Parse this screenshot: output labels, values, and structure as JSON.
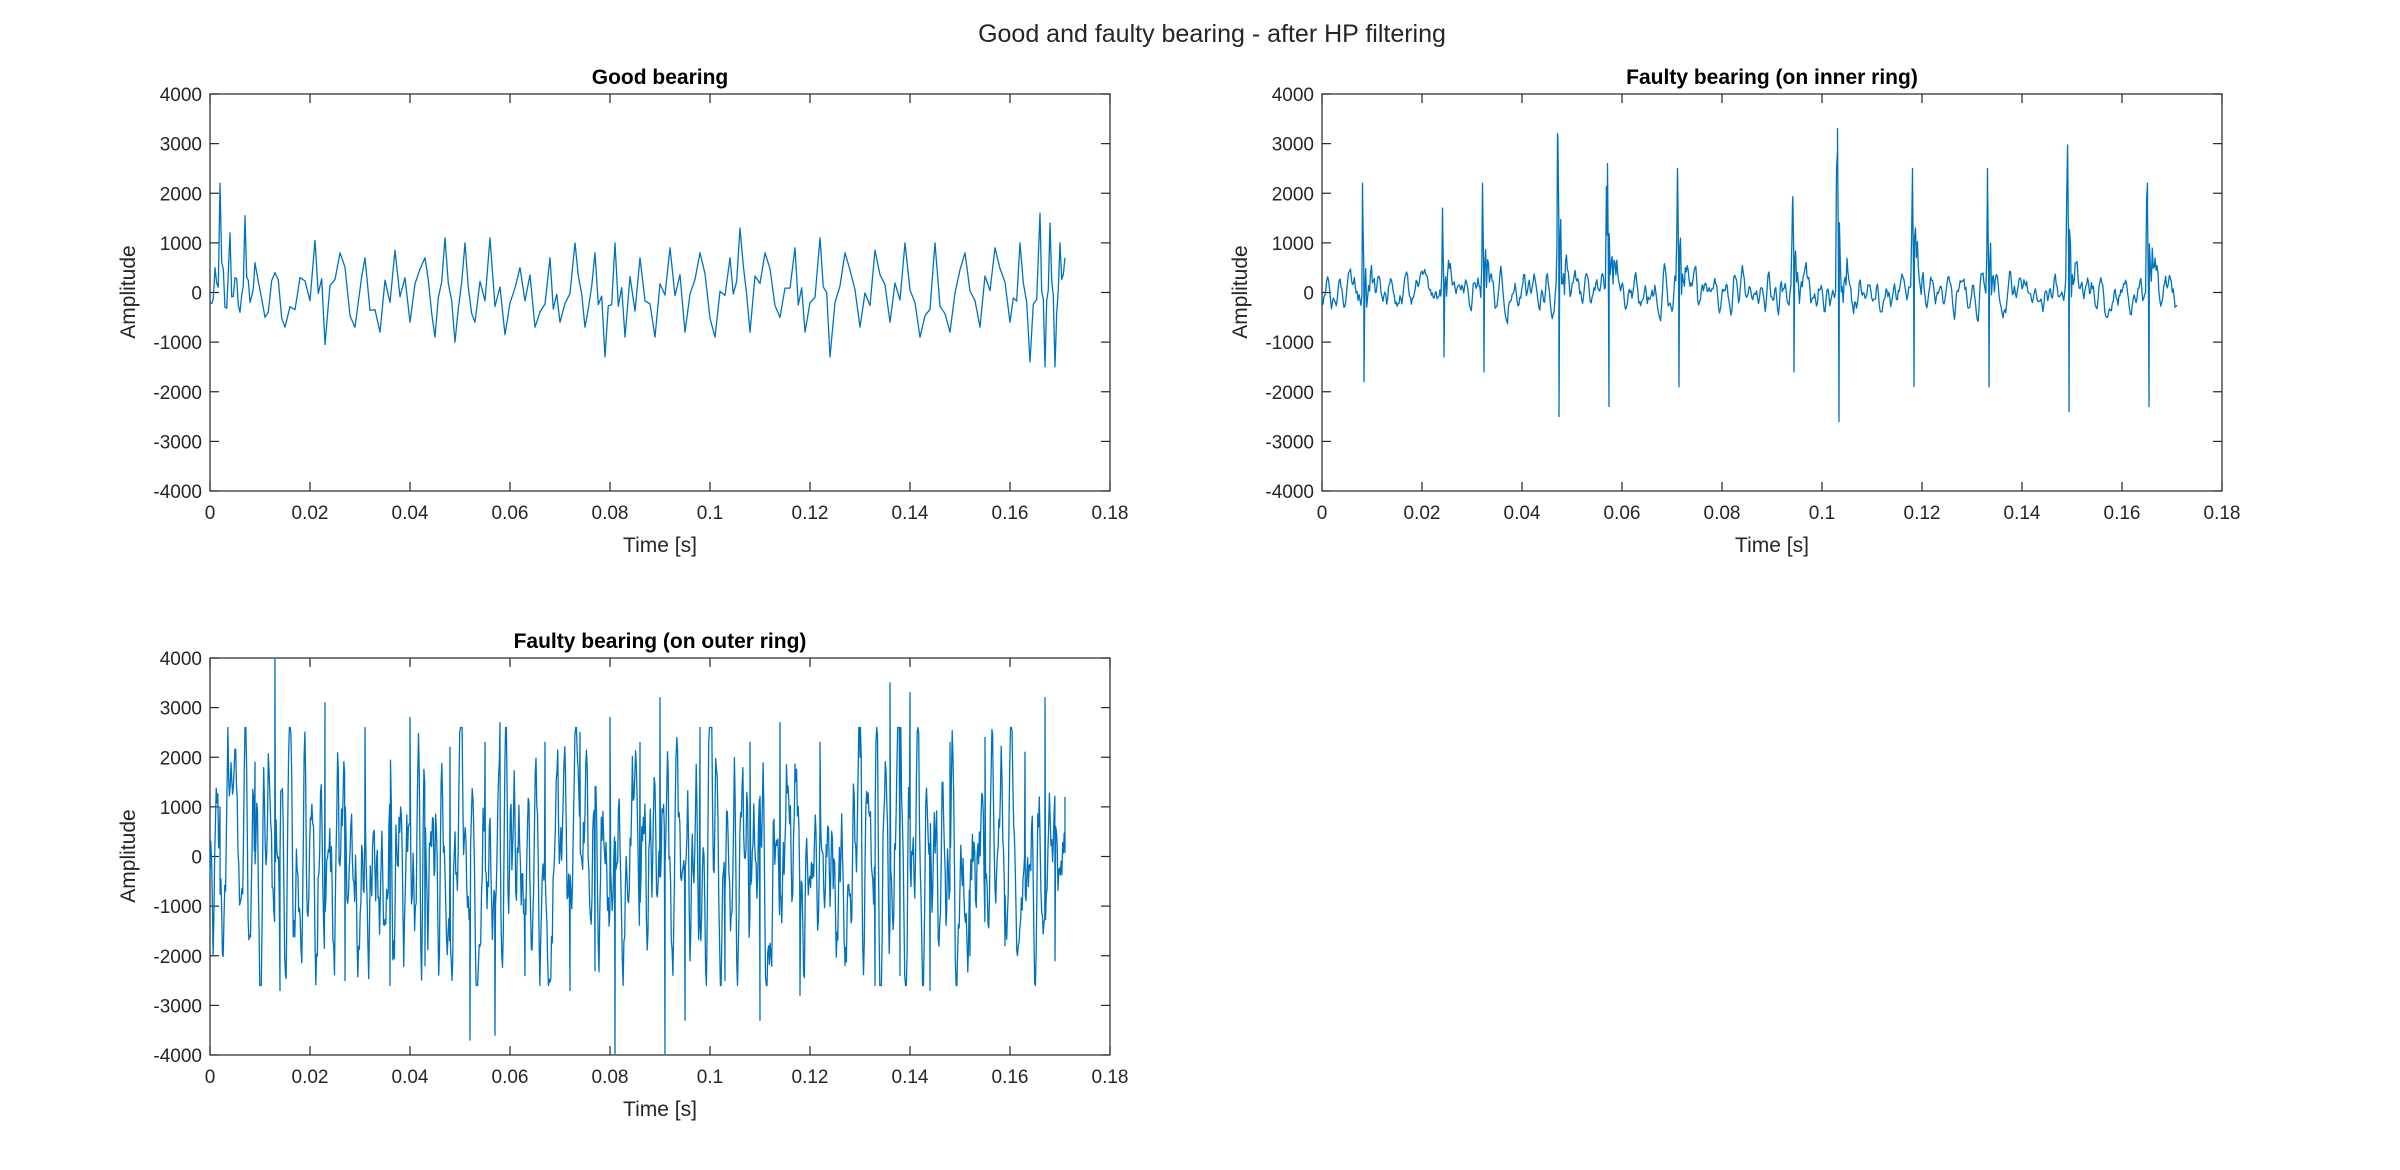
{
  "figure": {
    "title": "Good and faulty bearing - after HP filtering",
    "line_color": "#0072BD"
  },
  "chart_data": [
    {
      "type": "line",
      "title": "Good bearing",
      "xlabel": "Time [s]",
      "ylabel": "Amplitude",
      "xlim": [
        0,
        0.18
      ],
      "ylim": [
        -4000,
        4000
      ],
      "xticks": [
        0,
        0.02,
        0.04,
        0.06,
        0.08,
        0.1,
        0.12,
        0.14,
        0.16,
        0.18
      ],
      "xtick_labels": [
        "0",
        "0.02",
        "0.04",
        "0.06",
        "0.08",
        "0.1",
        "0.12",
        "0.14",
        "0.16",
        "0.18"
      ],
      "yticks": [
        -4000,
        -3000,
        -2000,
        -1000,
        0,
        1000,
        2000,
        3000,
        4000
      ],
      "ytick_labels": [
        "-4000",
        "-3000",
        "-2000",
        "-1000",
        "0",
        "1000",
        "2000",
        "3000",
        "4000"
      ],
      "grid": false,
      "series": [
        {
          "x_start": 0,
          "x_end": 0.171,
          "points": [
            [
              0,
              -200
            ],
            [
              0.001,
              500
            ],
            [
              0.002,
              2200
            ],
            [
              0.003,
              -300
            ],
            [
              0.004,
              1200
            ],
            [
              0.005,
              300
            ],
            [
              0.006,
              -400
            ],
            [
              0.007,
              1550
            ],
            [
              0.008,
              -200
            ],
            [
              0.009,
              600
            ],
            [
              0.011,
              -500
            ],
            [
              0.013,
              400
            ],
            [
              0.015,
              -700
            ],
            [
              0.018,
              300
            ],
            [
              0.021,
              1050
            ],
            [
              0.023,
              -1050
            ],
            [
              0.026,
              800
            ],
            [
              0.029,
              -700
            ],
            [
              0.031,
              700
            ],
            [
              0.034,
              -800
            ],
            [
              0.037,
              850
            ],
            [
              0.04,
              -600
            ],
            [
              0.043,
              700
            ],
            [
              0.045,
              -900
            ],
            [
              0.047,
              1100
            ],
            [
              0.049,
              -1000
            ],
            [
              0.051,
              1000
            ],
            [
              0.053,
              -600
            ],
            [
              0.056,
              1100
            ],
            [
              0.059,
              -850
            ],
            [
              0.062,
              500
            ],
            [
              0.065,
              -700
            ],
            [
              0.068,
              700
            ],
            [
              0.07,
              -600
            ],
            [
              0.073,
              1000
            ],
            [
              0.075,
              -700
            ],
            [
              0.077,
              800
            ],
            [
              0.079,
              -1300
            ],
            [
              0.081,
              1000
            ],
            [
              0.083,
              -900
            ],
            [
              0.086,
              700
            ],
            [
              0.089,
              -900
            ],
            [
              0.092,
              900
            ],
            [
              0.095,
              -800
            ],
            [
              0.098,
              800
            ],
            [
              0.101,
              -900
            ],
            [
              0.104,
              700
            ],
            [
              0.106,
              1300
            ],
            [
              0.108,
              -800
            ],
            [
              0.111,
              800
            ],
            [
              0.114,
              -500
            ],
            [
              0.117,
              900
            ],
            [
              0.119,
              -800
            ],
            [
              0.122,
              1100
            ],
            [
              0.124,
              -1300
            ],
            [
              0.127,
              800
            ],
            [
              0.13,
              -700
            ],
            [
              0.133,
              850
            ],
            [
              0.136,
              -600
            ],
            [
              0.139,
              1000
            ],
            [
              0.142,
              -900
            ],
            [
              0.145,
              1000
            ],
            [
              0.148,
              -800
            ],
            [
              0.151,
              800
            ],
            [
              0.154,
              -700
            ],
            [
              0.157,
              900
            ],
            [
              0.16,
              -600
            ],
            [
              0.162,
              1000
            ],
            [
              0.164,
              -1400
            ],
            [
              0.166,
              1600
            ],
            [
              0.167,
              -1500
            ],
            [
              0.168,
              1400
            ],
            [
              0.169,
              -1500
            ],
            [
              0.17,
              1000
            ],
            [
              0.171,
              700
            ]
          ]
        }
      ]
    },
    {
      "type": "line",
      "title": "Faulty bearing (on inner ring)",
      "xlabel": "Time [s]",
      "ylabel": "Amplitude",
      "xlim": [
        0,
        0.18
      ],
      "ylim": [
        -4000,
        4000
      ],
      "xticks": [
        0,
        0.02,
        0.04,
        0.06,
        0.08,
        0.1,
        0.12,
        0.14,
        0.16,
        0.18
      ],
      "xtick_labels": [
        "0",
        "0.02",
        "0.04",
        "0.06",
        "0.08",
        "0.1",
        "0.12",
        "0.14",
        "0.16",
        "0.18"
      ],
      "yticks": [
        -4000,
        -3000,
        -2000,
        -1000,
        0,
        1000,
        2000,
        3000,
        4000
      ],
      "ytick_labels": [
        "-4000",
        "-3000",
        "-2000",
        "-1000",
        "0",
        "1000",
        "2000",
        "3000",
        "4000"
      ],
      "grid": false,
      "series": [
        {
          "x_start": 0,
          "x_end": 0.171,
          "impulse_times": [
            0.008,
            0.024,
            0.032,
            0.047,
            0.057,
            0.071,
            0.094,
            0.103,
            0.118,
            0.133,
            0.149,
            0.165
          ],
          "impulse_peaks": [
            2200,
            1700,
            2200,
            3200,
            2600,
            2500,
            1800,
            3300,
            2500,
            2500,
            2900,
            2200
          ],
          "impulse_troughs": [
            -1800,
            -1300,
            -1600,
            -2500,
            -2300,
            -1900,
            -1600,
            -2600,
            -1900,
            -1900,
            -2400,
            -2300
          ],
          "noise_amplitude": 350
        }
      ]
    },
    {
      "type": "line",
      "title": "Faulty bearing (on outer ring)",
      "xlabel": "Time [s]",
      "ylabel": "Amplitude",
      "xlim": [
        0,
        0.18
      ],
      "ylim": [
        -4000,
        4000
      ],
      "xticks": [
        0,
        0.02,
        0.04,
        0.06,
        0.08,
        0.1,
        0.12,
        0.14,
        0.16,
        0.18
      ],
      "xtick_labels": [
        "0",
        "0.02",
        "0.04",
        "0.06",
        "0.08",
        "0.1",
        "0.12",
        "0.14",
        "0.16",
        "0.18"
      ],
      "yticks": [
        -4000,
        -3000,
        -2000,
        -1000,
        0,
        1000,
        2000,
        3000,
        4000
      ],
      "ytick_labels": [
        "-4000",
        "-3000",
        "-2000",
        "-1000",
        "0",
        "1000",
        "2000",
        "3000",
        "4000"
      ],
      "grid": false,
      "series": [
        {
          "x_start": 0,
          "x_end": 0.171,
          "peaks": [
            [
              0.002,
              1000
            ],
            [
              0.009,
              1900
            ],
            [
              0.013,
              4000
            ],
            [
              0.014,
              -2700
            ],
            [
              0.023,
              3100
            ],
            [
              0.027,
              -2500
            ],
            [
              0.031,
              2600
            ],
            [
              0.036,
              -2600
            ],
            [
              0.04,
              2800
            ],
            [
              0.043,
              -2200
            ],
            [
              0.048,
              2200
            ],
            [
              0.052,
              -3700
            ],
            [
              0.055,
              2300
            ],
            [
              0.057,
              -3600
            ],
            [
              0.058,
              2700
            ],
            [
              0.063,
              -2400
            ],
            [
              0.067,
              2300
            ],
            [
              0.072,
              -2700
            ],
            [
              0.074,
              2500
            ],
            [
              0.077,
              -2300
            ],
            [
              0.08,
              2800
            ],
            [
              0.081,
              -4000
            ],
            [
              0.086,
              2300
            ],
            [
              0.09,
              3200
            ],
            [
              0.091,
              -4000
            ],
            [
              0.095,
              -3300
            ],
            [
              0.098,
              2600
            ],
            [
              0.103,
              -2500
            ],
            [
              0.108,
              2300
            ],
            [
              0.11,
              -3300
            ],
            [
              0.114,
              2700
            ],
            [
              0.118,
              -2800
            ],
            [
              0.122,
              2300
            ],
            [
              0.127,
              -2200
            ],
            [
              0.13,
              2000
            ],
            [
              0.133,
              -2600
            ],
            [
              0.136,
              3500
            ],
            [
              0.138,
              -2400
            ],
            [
              0.14,
              3300
            ],
            [
              0.144,
              -2700
            ],
            [
              0.148,
              2300
            ],
            [
              0.152,
              -2000
            ],
            [
              0.155,
              2400
            ],
            [
              0.159,
              -1800
            ],
            [
              0.163,
              2100
            ],
            [
              0.167,
              3200
            ],
            [
              0.169,
              -2100
            ],
            [
              0.171,
              1200
            ]
          ],
          "noise_amplitude": 1200
        }
      ]
    }
  ]
}
